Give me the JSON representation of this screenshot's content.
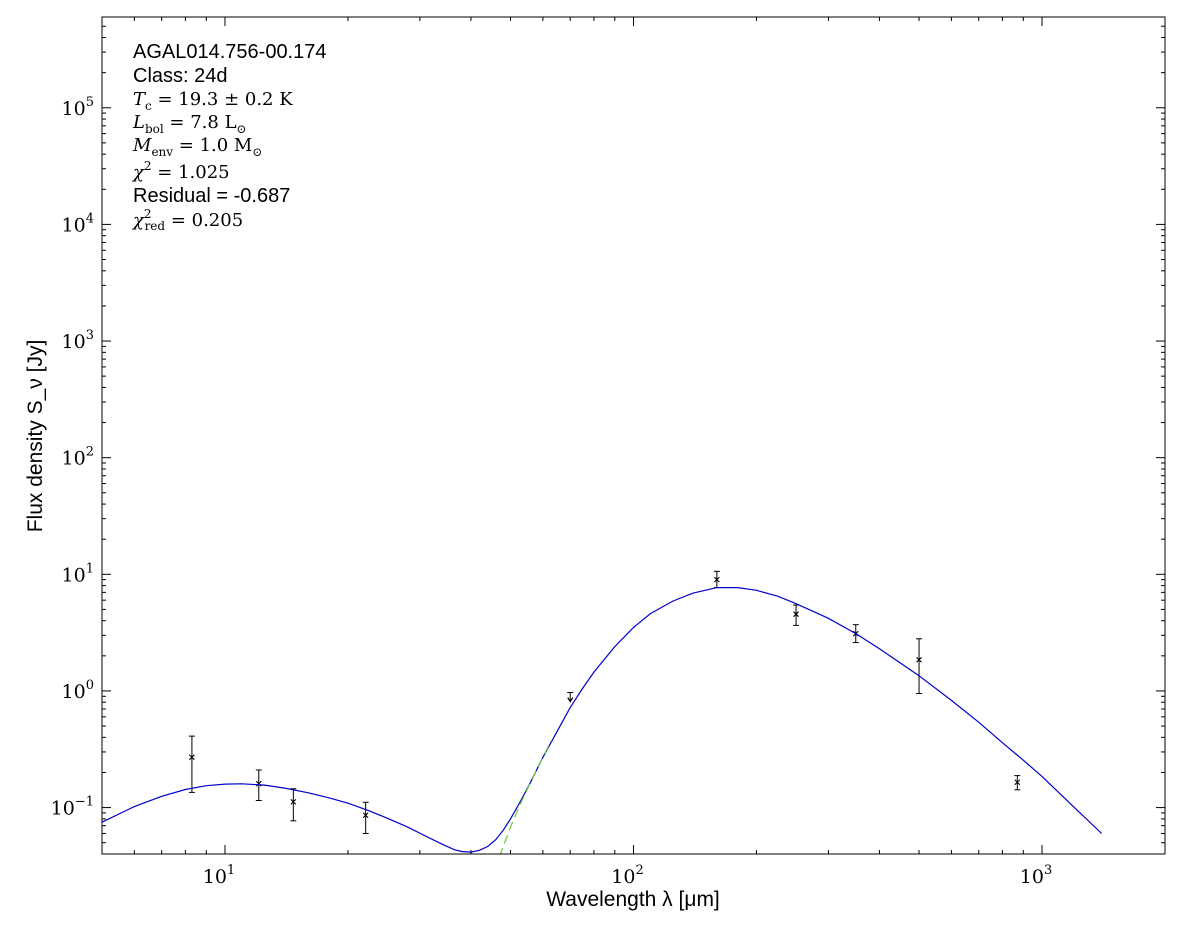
{
  "chart_data": {
    "type": "scatter",
    "title": "",
    "xlabel": "Wavelength λ [μm]",
    "ylabel": "Flux density S_ν [Jy]",
    "xscale": "log",
    "yscale": "log",
    "xlim": [
      5,
      2000
    ],
    "ylim": [
      0.04,
      600000
    ],
    "grid": false,
    "x_tick_labels": [
      {
        "base": "10",
        "exp": "1",
        "value": 10
      },
      {
        "base": "10",
        "exp": "2",
        "value": 100
      },
      {
        "base": "10",
        "exp": "3",
        "value": 1000
      }
    ],
    "y_tick_labels": [
      {
        "base": "10",
        "exp": "−1",
        "value": 0.1
      },
      {
        "base": "10",
        "exp": "0",
        "value": 1
      },
      {
        "base": "10",
        "exp": "1",
        "value": 10
      },
      {
        "base": "10",
        "exp": "2",
        "value": 100
      },
      {
        "base": "10",
        "exp": "3",
        "value": 1000
      },
      {
        "base": "10",
        "exp": "4",
        "value": 10000
      },
      {
        "base": "10",
        "exp": "5",
        "value": 100000
      }
    ],
    "annotations": {
      "source": "AGAL014.756-00.174",
      "class": "Class: 24d",
      "tc": {
        "sym": "T",
        "sub": "c",
        "text": " = 19.3 ± 0.2 K"
      },
      "lbol": {
        "sym": "L",
        "sub": "bol",
        "text": " = 7.8 L",
        "tail": "⊙"
      },
      "menv": {
        "sym": "M",
        "sub": "env",
        "text": " = 1.0 M",
        "tail": "⊙"
      },
      "chi2": {
        "sym": "χ",
        "sup": "2",
        "text": " = 1.025"
      },
      "residual": "Residual = -0.687",
      "chi2red": {
        "sym": "χ",
        "sup": "2",
        "sub": "red",
        "text": " = 0.205"
      }
    },
    "series": [
      {
        "type": "scatter",
        "color": "#000000",
        "points": [
          {
            "x": 8.3,
            "y": 0.27,
            "ylo": 0.135,
            "yhi": 0.41
          },
          {
            "x": 12.1,
            "y": 0.16,
            "ylo": 0.115,
            "yhi": 0.21
          },
          {
            "x": 14.7,
            "y": 0.112,
            "ylo": 0.077,
            "yhi": 0.145
          },
          {
            "x": 22.1,
            "y": 0.086,
            "ylo": 0.06,
            "yhi": 0.111
          },
          {
            "x": 160,
            "y": 9.0,
            "ylo": 7.7,
            "yhi": 10.6
          },
          {
            "x": 250,
            "y": 4.55,
            "ylo": 3.65,
            "yhi": 5.45
          },
          {
            "x": 350,
            "y": 3.1,
            "ylo": 2.6,
            "yhi": 3.7
          },
          {
            "x": 500,
            "y": 1.85,
            "ylo": 0.95,
            "yhi": 2.8
          },
          {
            "x": 870,
            "y": 0.165,
            "ylo": 0.142,
            "yhi": 0.188
          }
        ]
      },
      {
        "type": "upper-limit",
        "color": "#000000",
        "points": [
          {
            "x": 70,
            "y": 0.9,
            "ylo": 0.81,
            "yhi": 0.97
          }
        ]
      },
      {
        "type": "line",
        "color": "#0000cc",
        "x": [
          5,
          6,
          7,
          8,
          9,
          10,
          11,
          12.5,
          14,
          16,
          18,
          20,
          22.5,
          25,
          28,
          31,
          34,
          36.5,
          38,
          40,
          42,
          44,
          46,
          48,
          50,
          53,
          56,
          60,
          65,
          70,
          75,
          80,
          90,
          100,
          110,
          125,
          140,
          160,
          180,
          200,
          225,
          250,
          300,
          350,
          400,
          500,
          600,
          700,
          800,
          900,
          1000,
          1200,
          1400
        ],
        "y": [
          0.075,
          0.102,
          0.125,
          0.143,
          0.154,
          0.159,
          0.16,
          0.156,
          0.147,
          0.134,
          0.121,
          0.109,
          0.094,
          0.081,
          0.068,
          0.057,
          0.0485,
          0.0435,
          0.042,
          0.0415,
          0.043,
          0.0465,
          0.053,
          0.064,
          0.08,
          0.115,
          0.165,
          0.27,
          0.45,
          0.72,
          1.05,
          1.45,
          2.4,
          3.5,
          4.6,
          5.9,
          6.9,
          7.7,
          7.7,
          7.3,
          6.5,
          5.6,
          4.2,
          3.1,
          2.3,
          1.35,
          0.83,
          0.54,
          0.36,
          0.255,
          0.185,
          0.1,
          0.06
        ]
      },
      {
        "type": "line",
        "style": "dashed",
        "color": "#66cc33",
        "x": [
          47,
          50,
          53,
          56,
          60,
          63
        ],
        "y": [
          0.038,
          0.068,
          0.11,
          0.165,
          0.27,
          0.38
        ]
      }
    ]
  }
}
